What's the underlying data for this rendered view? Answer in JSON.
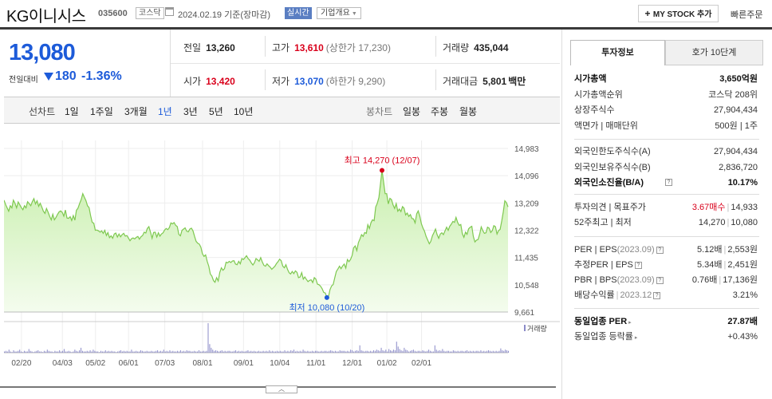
{
  "header": {
    "title": "KG이니시스",
    "code": "035600",
    "market": "코스닥",
    "date": "2024.02.19 기준(장마감)",
    "live": "실시간",
    "corp_info": "기업개요",
    "mystock": "MY STOCK 추가",
    "fast_order": "빠른주문"
  },
  "price": {
    "current": "13,080",
    "change_label": "전일대비",
    "change": "180",
    "change_pct": "-1.36%",
    "direction": "down"
  },
  "stats": {
    "prev_label": "전일",
    "prev": "13,260",
    "high_label": "고가",
    "high": "13,610",
    "high_limit": "(상한가 17,230)",
    "volume_label": "거래량",
    "volume": "435,044",
    "open_label": "시가",
    "open": "13,420",
    "low_label": "저가",
    "low": "13,070",
    "low_limit": "(하한가 9,290)",
    "amount_label": "거래대금",
    "amount": "5,801",
    "amount_unit": "백만"
  },
  "period_tabs": {
    "line_label": "선차트",
    "line": [
      "1일",
      "1주일",
      "3개월",
      "1년",
      "3년",
      "5년",
      "10년"
    ],
    "selected": "1년",
    "candle_label": "봉차트",
    "candle": [
      "일봉",
      "주봉",
      "월봉"
    ]
  },
  "chart_data": {
    "type": "area",
    "x_ticks": [
      "02/20",
      "04/03",
      "05/02",
      "06/01",
      "07/03",
      "08/01",
      "09/01",
      "10/04",
      "11/01",
      "12/01",
      "01/02",
      "02/01"
    ],
    "y_ticks": [
      14983,
      14096,
      13209,
      12322,
      11435,
      10548,
      9661
    ],
    "ylim": [
      9661,
      14983
    ],
    "max_label": "최고 14,270 (12/07)",
    "min_label": "최저 10,080 (10/20)",
    "volume_label": "거래량",
    "colors": {
      "line": "#7ec850",
      "fill": "#d9f3c4",
      "max": "#d9001b",
      "min": "#1d5bd9"
    },
    "series_values": [
      13300,
      13160,
      13050,
      12940,
      13120,
      13050,
      13300,
      13200,
      13050,
      13240,
      13150,
      13060,
      12990,
      13120,
      13050,
      13250,
      13190,
      13120,
      13250,
      13350,
      13180,
      13280,
      13100,
      13200,
      13080,
      12940,
      12870,
      13030,
      12910,
      12770,
      12660,
      12840,
      12660,
      12740,
      12840,
      12920,
      12950,
      12900,
      12780,
      12980,
      12720,
      12710,
      12760,
      12640,
      12800,
      12650,
      12970,
      13040,
      13190,
      13320,
      13510,
      13400,
      13290,
      13120,
      13060,
      12800,
      12580,
      12550,
      12320,
      12330,
      12300,
      12260,
      12300,
      12220,
      12320,
      12150,
      12250,
      12080,
      12140,
      12060,
      12200,
      12230,
      12100,
      12200,
      12110,
      12180,
      12220,
      12130,
      12150,
      12070,
      11980,
      12050,
      12070,
      12040,
      12090,
      12120,
      12030,
      12110,
      12150,
      12260,
      12230,
      12380,
      12440,
      12260,
      12060,
      12250,
      12260,
      12100,
      12240,
      12130,
      12200,
      12240,
      12330,
      12380,
      12340,
      12410,
      12560,
      12530,
      12570,
      12480,
      12440,
      12190,
      12140,
      12320,
      12360,
      12400,
      12290,
      12270,
      12360,
      12390,
      12300,
      12120,
      11960,
      11900,
      11870,
      11770,
      11560,
      11470,
      11520,
      11310,
      11150,
      10900,
      10830,
      10680,
      10630,
      10780,
      10670,
      10950,
      11100,
      11020,
      11070,
      11280,
      11260,
      11310,
      11270,
      11320,
      11330,
      11220,
      11200,
      11310,
      11230,
      11400,
      11370,
      11430,
      11490,
      11400,
      11350,
      11260,
      11190,
      11260,
      11400,
      11360,
      11310,
      11430,
      11290,
      11180,
      11150,
      11230,
      11170,
      11120,
      11050,
      11100,
      11150,
      11240,
      11300,
      11380,
      11330,
      11150,
      11100,
      11200,
      11050,
      10940,
      10900,
      10980,
      10910,
      11000,
      10950,
      10780,
      10800,
      10940,
      10730,
      10800,
      10720,
      10650,
      10690,
      10710,
      10620,
      10780,
      10730,
      10570,
      10550,
      10500,
      10420,
      10300,
      10280,
      10130,
      10160,
      10390,
      10510,
      10560,
      10780,
      10980,
      11060,
      11150,
      11070,
      11160,
      11220,
      11090,
      11370,
      11300,
      11370,
      11500,
      11750,
      11810,
      11660,
      11920,
      12040,
      12180,
      12120,
      12250,
      12220,
      12500,
      12380,
      12570,
      12660,
      12630,
      13080,
      13200,
      13390,
      13820,
      14270,
      13890,
      13510,
      13510,
      13180,
      13360,
      13320,
      13150,
      13030,
      13190,
      12940,
      13010,
      12930,
      13090,
      13040,
      12820,
      12880,
      12770,
      12830,
      12700,
      12690,
      12560,
      12860,
      12950,
      12780,
      12530,
      12390,
      12290,
      12120,
      12000,
      11880,
      11960,
      12140,
      12250,
      12360,
      12180,
      12060,
      12200,
      12240,
      12180,
      12300,
      12420,
      12320,
      12450,
      12520,
      12610,
      12580,
      12740,
      12580,
      12480,
      12510,
      12210,
      12090,
      12260,
      12190,
      12370,
      12420,
      12450,
      12120,
      11940,
      12000,
      12020,
      12200,
      12430,
      12310,
      12220,
      12240,
      12420,
      12390,
      12250,
      12310,
      12470,
      12440,
      12200,
      12310,
      12350,
      12620,
      12930,
      13280,
      13220,
      13080
    ],
    "volume_values": [
      2,
      3,
      2,
      5,
      2,
      1,
      4,
      2,
      2,
      3,
      5,
      2,
      1,
      3,
      2,
      2,
      6,
      3,
      2,
      1,
      2,
      3,
      4,
      2,
      2,
      1,
      3,
      2,
      5,
      3,
      2,
      2,
      1,
      3,
      2,
      2,
      4,
      2,
      3,
      6,
      2,
      2,
      3,
      2,
      1,
      2,
      5,
      3,
      2,
      4,
      8,
      3,
      2,
      2,
      3,
      2,
      4,
      2,
      5,
      3,
      2,
      2,
      1,
      3,
      2,
      2,
      4,
      2,
      3,
      2,
      3,
      2,
      2,
      1,
      2,
      3,
      4,
      2,
      3,
      2,
      3,
      2,
      2,
      5,
      2,
      2,
      3,
      2,
      2,
      4,
      3,
      2,
      2,
      3,
      2,
      2,
      3,
      2,
      2,
      3,
      4,
      2,
      3,
      2,
      5,
      2,
      3,
      2,
      4,
      2,
      3,
      2,
      2,
      3,
      2,
      4,
      2,
      3,
      2,
      4,
      3,
      3,
      2,
      2,
      3,
      2,
      2,
      4,
      2,
      2,
      3,
      2,
      3,
      48,
      14,
      8,
      5,
      3,
      4,
      3,
      2,
      3,
      4,
      2,
      3,
      2,
      3,
      3,
      2,
      2,
      3,
      4,
      2,
      3,
      2,
      3,
      2,
      2,
      3,
      4,
      2,
      3,
      2,
      3,
      2,
      2,
      3,
      2,
      2,
      3,
      2,
      3,
      2,
      4,
      2,
      3,
      2,
      2,
      3,
      2,
      3,
      2,
      2,
      4,
      2,
      3,
      2,
      4,
      3,
      5,
      2,
      3,
      2,
      3,
      2,
      5,
      3,
      2,
      3,
      2,
      2,
      3,
      2,
      3,
      3,
      2,
      2,
      3,
      2,
      3,
      3,
      2,
      3,
      4,
      3,
      2,
      3,
      2,
      2,
      4,
      3,
      3,
      3,
      2,
      3,
      2,
      5,
      4,
      2,
      3,
      4,
      3,
      12,
      4,
      3,
      2,
      3,
      3,
      2,
      3,
      2,
      4,
      3,
      5,
      4,
      3,
      8,
      4,
      3,
      5,
      2,
      6,
      4,
      3,
      5,
      4,
      18,
      10,
      6,
      4,
      3,
      8,
      5,
      4,
      2,
      3,
      4,
      5,
      3,
      2,
      3,
      3,
      2,
      4,
      3,
      2,
      3,
      5,
      3,
      2,
      2,
      12,
      5,
      3,
      4,
      3,
      6,
      3,
      2,
      3,
      3,
      2,
      2,
      4,
      3,
      2,
      3,
      2,
      3,
      3,
      2,
      3,
      4,
      2,
      3,
      2,
      3,
      2,
      3,
      3,
      2,
      4,
      2,
      3,
      2,
      3,
      4,
      3,
      2,
      3,
      2,
      3,
      2,
      3,
      7,
      4,
      3,
      5,
      4,
      3
    ]
  },
  "invest": {
    "tab_a": "투자정보",
    "tab_b": "호가 10단계",
    "rows1": [
      {
        "k": "시가총액",
        "v": "3,650억원",
        "bold": true
      },
      {
        "k": "시가총액순위",
        "v": "코스닥 208위"
      },
      {
        "k": "상장주식수",
        "v": "27,904,434"
      },
      {
        "k": "액면가 | 매매단위",
        "v": "500원 | 1주"
      }
    ],
    "rows2": [
      {
        "k": "외국인한도주식수(A)",
        "v": "27,904,434"
      },
      {
        "k": "외국인보유주식수(B)",
        "v": "2,836,720"
      },
      {
        "k": "외국인소진율(B/A)",
        "v": "10.17%",
        "bold": true
      }
    ],
    "opinion_label": "투자의견 | 목표주가",
    "opinion": "3.67매수",
    "target": "14,933",
    "w52_label": "52주최고 | 최저",
    "w52_high": "14,270",
    "w52_low": "10,080",
    "per_label": "PER | EPS",
    "per_date": "(2023.09)",
    "per": "5.12배",
    "eps": "2,553원",
    "eper_label": "추정PER | EPS",
    "eper": "5.34배",
    "eeps": "2,451원",
    "pbr_label": "PBR | BPS",
    "pbr_date": "(2023.09)",
    "pbr": "0.76배",
    "bps": "17,136원",
    "div_label": "배당수익률",
    "div_date": "2023.12",
    "div": "3.21%",
    "sector_per_label": "동일업종 PER",
    "sector_per": "27.87배",
    "sector_rate_label": "동일업종 등락률",
    "sector_rate": "+0.43%"
  }
}
